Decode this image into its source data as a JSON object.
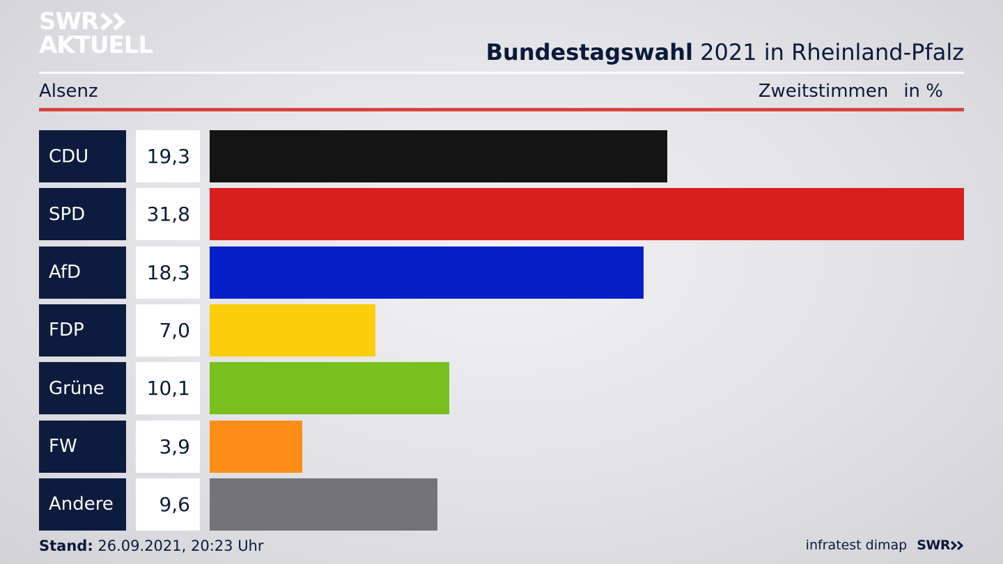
{
  "logo": {
    "line1": "SWR",
    "line2": "AKTUELL"
  },
  "header": {
    "title_bold": "Bundestagswahl",
    "title_rest": "2021 in Rheinland-Pfalz",
    "region": "Alsenz",
    "measure": "Zweitstimmen",
    "unit": "in %"
  },
  "chart_data": {
    "type": "bar",
    "orientation": "horizontal",
    "categories": [
      "CDU",
      "SPD",
      "AfD",
      "FDP",
      "Grüne",
      "FW",
      "Andere"
    ],
    "values": [
      19.3,
      31.8,
      18.3,
      7.0,
      10.1,
      3.9,
      9.6
    ],
    "value_labels": [
      "19,3",
      "31,8",
      "18,3",
      "7,0",
      "10,1",
      "3,9",
      "9,6"
    ],
    "colors": [
      "#141414",
      "#d81f1f",
      "#0520c8",
      "#fccd0a",
      "#79bf1e",
      "#fd8e19",
      "#747476"
    ],
    "title": "Bundestagswahl 2021 in Rheinland-Pfalz",
    "subtitle": "Alsenz",
    "xlim": [
      0,
      31.8
    ],
    "grid": false
  },
  "footer": {
    "stand_label": "Stand:",
    "stand_value": "26.09.2021, 20:23 Uhr",
    "source": "infratest dimap",
    "brand": "SWR"
  }
}
